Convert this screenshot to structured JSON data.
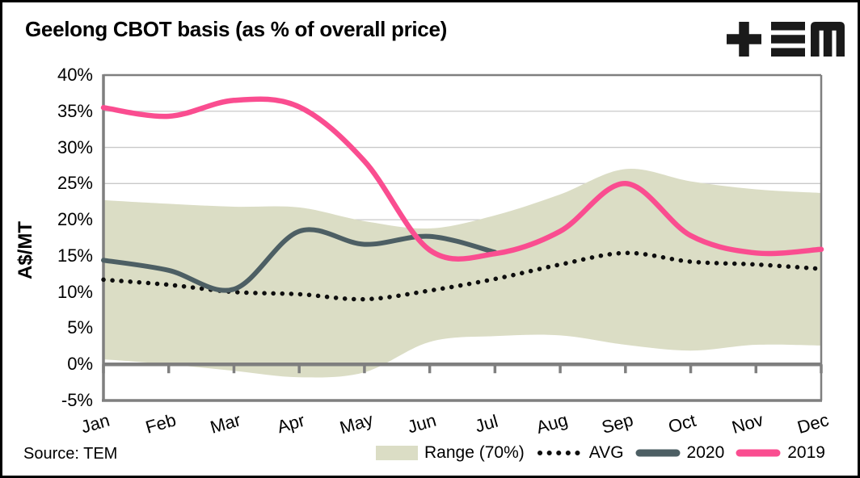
{
  "header": {
    "title": "Geelong CBOT basis (as % of overall price)",
    "logo": "TEM"
  },
  "chart_data": {
    "type": "line",
    "title": "Geelong CBOT basis (as % of overall price)",
    "xlabel": "",
    "ylabel": "A$/MT",
    "ylim": [
      -5,
      40
    ],
    "y_tick_step": 5,
    "y_ticks": [
      "40%",
      "35%",
      "30%",
      "25%",
      "20%",
      "15%",
      "10%",
      "5%",
      "0%",
      "-5%"
    ],
    "categories": [
      "Jan",
      "Feb",
      "Mar",
      "Apr",
      "May",
      "Jun",
      "Jul",
      "Aug",
      "Sep",
      "Oct",
      "Nov",
      "Dec"
    ],
    "grid": "horizontal",
    "legend_position": "bottom",
    "series": [
      {
        "name": "Range (70%)",
        "type": "band",
        "color": "#dbddc5",
        "upper": [
          22.7,
          22.2,
          21.8,
          21.7,
          19.8,
          18.8,
          20.6,
          23.5,
          27.0,
          25.3,
          24.2,
          23.7
        ],
        "lower": [
          0.7,
          0.0,
          -0.9,
          -1.8,
          -1.1,
          3.1,
          3.9,
          4.0,
          2.7,
          1.9,
          2.7,
          2.6
        ]
      },
      {
        "name": "AVG",
        "type": "dotted_line",
        "color": "#0e0e0e",
        "values": [
          11.7,
          11.0,
          10.0,
          9.7,
          9.0,
          10.2,
          11.8,
          13.8,
          15.4,
          14.2,
          13.8,
          13.2
        ]
      },
      {
        "name": "2020",
        "type": "line",
        "color": "#4d5f64",
        "values": [
          14.4,
          13.0,
          10.4,
          18.4,
          16.6,
          17.7,
          15.5,
          null,
          null,
          null,
          null,
          null
        ]
      },
      {
        "name": "2019",
        "type": "line",
        "color": "#fa4d90",
        "values": [
          35.5,
          34.3,
          36.5,
          35.6,
          28.1,
          15.8,
          15.3,
          18.4,
          25.0,
          17.8,
          15.4,
          15.9
        ]
      }
    ]
  },
  "legend": {
    "items": [
      {
        "label": "Range (70%)",
        "color": "#dbddc5",
        "style": "swatch"
      },
      {
        "label": "AVG",
        "color": "#0e0e0e",
        "style": "dots"
      },
      {
        "label": "2020",
        "color": "#4d5f64",
        "style": "line"
      },
      {
        "label": "2019",
        "color": "#fa4d90",
        "style": "line"
      }
    ]
  },
  "footer": {
    "source": "Source: TEM"
  },
  "colors": {
    "gridline": "#c9c9c9",
    "axis": "#7f7f7f",
    "background": "#ffffff",
    "text": "#000000"
  }
}
